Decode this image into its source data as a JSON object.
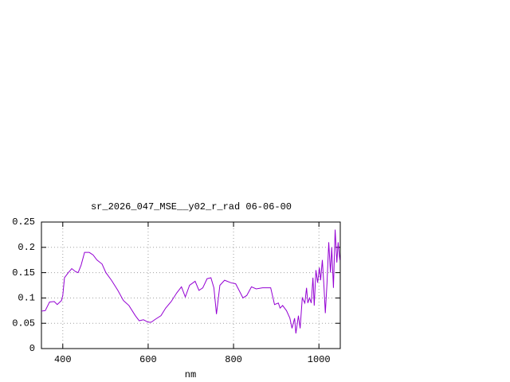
{
  "chart_data": {
    "type": "line",
    "title": "sr_2026_047_MSE__y02_r_rad 06-06-00",
    "x_label": "nm",
    "x": [
      350,
      359,
      369,
      380,
      387,
      397,
      400,
      404,
      413,
      421,
      430,
      436,
      443,
      451,
      462,
      471,
      480,
      492,
      501,
      514,
      529,
      542,
      555,
      570,
      579,
      589,
      600,
      607,
      617,
      630,
      641,
      654,
      667,
      678,
      687,
      697,
      710,
      719,
      728,
      738,
      747,
      754,
      760,
      768,
      779,
      794,
      805,
      816,
      822,
      831,
      842,
      853,
      868,
      887,
      896,
      905,
      909,
      915,
      924,
      932,
      937,
      943,
      946,
      952,
      956,
      961,
      967,
      971,
      974,
      978,
      982,
      986,
      989,
      993,
      997,
      1001,
      1004,
      1008,
      1012,
      1015,
      1019,
      1023,
      1027,
      1030,
      1034,
      1038,
      1042,
      1045,
      1049
    ],
    "series": [
      {
        "color": "#9400d3",
        "values": [
          0.074,
          0.075,
          0.092,
          0.093,
          0.087,
          0.095,
          0.105,
          0.14,
          0.15,
          0.158,
          0.152,
          0.15,
          0.165,
          0.19,
          0.19,
          0.185,
          0.175,
          0.167,
          0.15,
          0.135,
          0.115,
          0.095,
          0.085,
          0.065,
          0.055,
          0.057,
          0.052,
          0.052,
          0.058,
          0.065,
          0.08,
          0.093,
          0.11,
          0.122,
          0.102,
          0.125,
          0.133,
          0.115,
          0.12,
          0.138,
          0.14,
          0.12,
          0.068,
          0.125,
          0.135,
          0.13,
          0.128,
          0.11,
          0.1,
          0.105,
          0.122,
          0.118,
          0.12,
          0.12,
          0.087,
          0.09,
          0.08,
          0.085,
          0.075,
          0.06,
          0.04,
          0.06,
          0.03,
          0.065,
          0.04,
          0.1,
          0.09,
          0.12,
          0.09,
          0.1,
          0.09,
          0.14,
          0.085,
          0.155,
          0.13,
          0.16,
          0.135,
          0.175,
          0.12,
          0.07,
          0.13,
          0.21,
          0.15,
          0.2,
          0.12,
          0.235,
          0.17,
          0.21,
          0.175
        ]
      }
    ],
    "xlim": [
      350,
      1050
    ],
    "xticks": [
      400,
      600,
      800,
      1000
    ],
    "ylim": [
      0,
      0.25
    ],
    "yticks": [
      0,
      0.05,
      0.1,
      0.15,
      0.2,
      0.25
    ],
    "grid": true
  }
}
